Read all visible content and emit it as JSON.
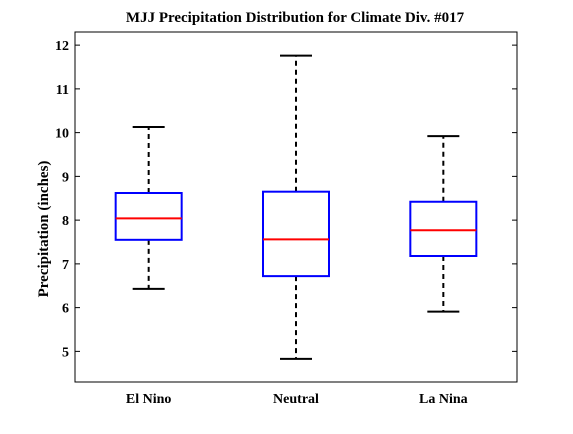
{
  "chart_data": {
    "type": "box",
    "title": "MJJ Precipitation Distribution for Climate Div. #017",
    "xlabel": "",
    "ylabel": "Precipitation (inches)",
    "ylim": [
      4.3,
      12.3
    ],
    "yticks": [
      5,
      6,
      7,
      8,
      9,
      10,
      11,
      12
    ],
    "grid": false,
    "categories": [
      "El Nino",
      "Neutral",
      "La Nina"
    ],
    "boxes": [
      {
        "category": "El Nino",
        "whisker_low": 6.43,
        "q1": 7.55,
        "median": 8.04,
        "q3": 8.62,
        "whisker_high": 10.13
      },
      {
        "category": "Neutral",
        "whisker_low": 4.83,
        "q1": 6.72,
        "median": 7.56,
        "q3": 8.65,
        "whisker_high": 11.76
      },
      {
        "category": "La Nina",
        "whisker_low": 5.91,
        "q1": 7.18,
        "median": 7.77,
        "q3": 8.42,
        "whisker_high": 9.92
      }
    ],
    "colors": {
      "box": "#0000ff",
      "median": "#ff0000",
      "whisker": "#000000"
    }
  }
}
